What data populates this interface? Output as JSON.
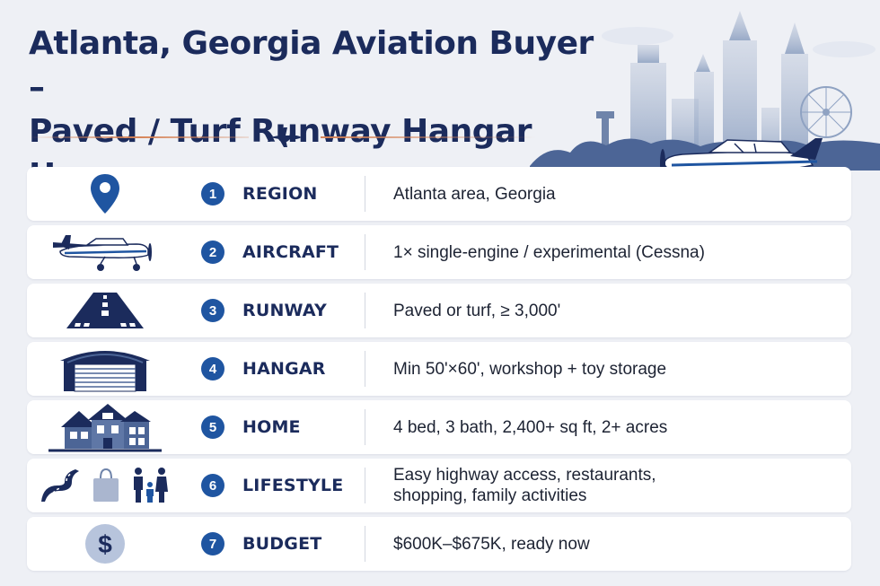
{
  "title": {
    "line1": "Atlanta, Georgia Aviation Buyer –",
    "line2": "Paved / Turf Runway Hangar Home"
  },
  "colors": {
    "navy": "#1b2b5c",
    "badge": "#1f55a1",
    "accent_line": "#d68458",
    "card": "#ffffff",
    "background": "#eef0f5"
  },
  "rows": [
    {
      "number": "1",
      "label": "REGION",
      "value": "Atlanta area, Georgia",
      "icon": "map-pin-icon"
    },
    {
      "number": "2",
      "label": "AIRCRAFT",
      "value": "1× single-engine / experimental (Cessna)",
      "icon": "airplane-icon"
    },
    {
      "number": "3",
      "label": "RUNWAY",
      "value": "Paved or turf, ≥ 3,000'",
      "icon": "runway-icon"
    },
    {
      "number": "4",
      "label": "HANGAR",
      "value": "Min 50'×60', workshop + toy storage",
      "icon": "hangar-icon"
    },
    {
      "number": "5",
      "label": "HOME",
      "value": "4 bed, 3 bath, 2,400+ sq ft, 2+ acres",
      "icon": "house-icon"
    },
    {
      "number": "6",
      "label": "LIFESTYLE",
      "value_line1": "Easy highway access, restaurants,",
      "value_line2": "shopping, family activities",
      "icons": [
        "road-icon",
        "shopping-bag-icon",
        "family-icon"
      ]
    },
    {
      "number": "7",
      "label": "BUDGET",
      "value": "$600K–$675K, ready now",
      "icon": "dollar-icon"
    }
  ]
}
